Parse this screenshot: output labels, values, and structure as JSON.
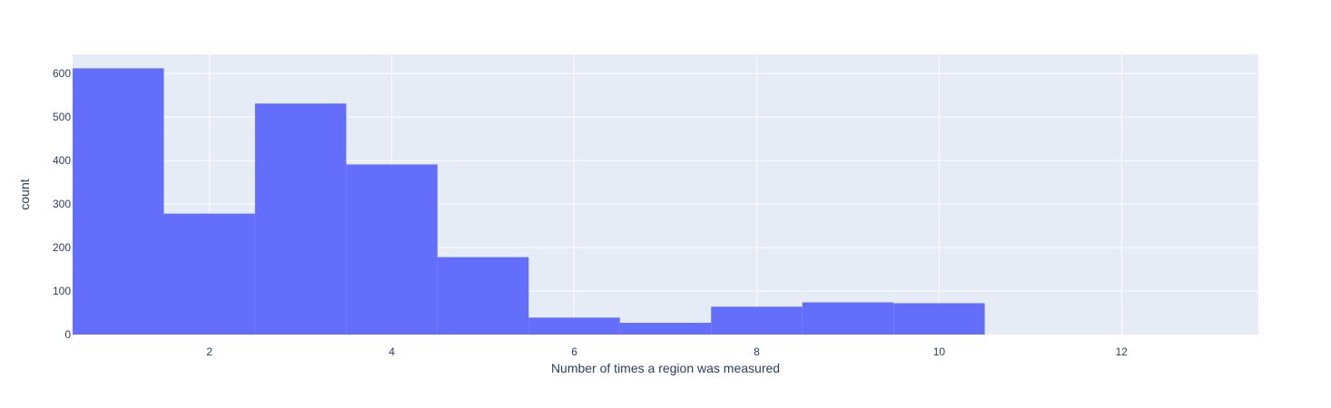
{
  "chart_data": {
    "type": "bar",
    "subtype": "histogram",
    "title": "",
    "xlabel": "Number of times a region was measured",
    "ylabel": "count",
    "bins": [
      {
        "x": 1,
        "count": 612
      },
      {
        "x": 2,
        "count": 278
      },
      {
        "x": 3,
        "count": 531
      },
      {
        "x": 4,
        "count": 391
      },
      {
        "x": 5,
        "count": 178
      },
      {
        "x": 6,
        "count": 39
      },
      {
        "x": 7,
        "count": 27
      },
      {
        "x": 8,
        "count": 64
      },
      {
        "x": 9,
        "count": 74
      },
      {
        "x": 10,
        "count": 72
      },
      {
        "x": 11,
        "count": 0
      },
      {
        "x": 12,
        "count": 0
      },
      {
        "x": 13,
        "count": 0
      }
    ],
    "xlim": [
      0.5,
      13.5
    ],
    "ylim": [
      0,
      644
    ],
    "x_ticks": [
      2,
      4,
      6,
      8,
      10,
      12
    ],
    "y_ticks": [
      0,
      100,
      200,
      300,
      400,
      500,
      600
    ],
    "grid": true,
    "legend": "none",
    "colors": {
      "bar": "#636efa",
      "plot_bg": "#e5ecf6",
      "grid": "#ffffff",
      "text": "#2a3f5f"
    }
  }
}
